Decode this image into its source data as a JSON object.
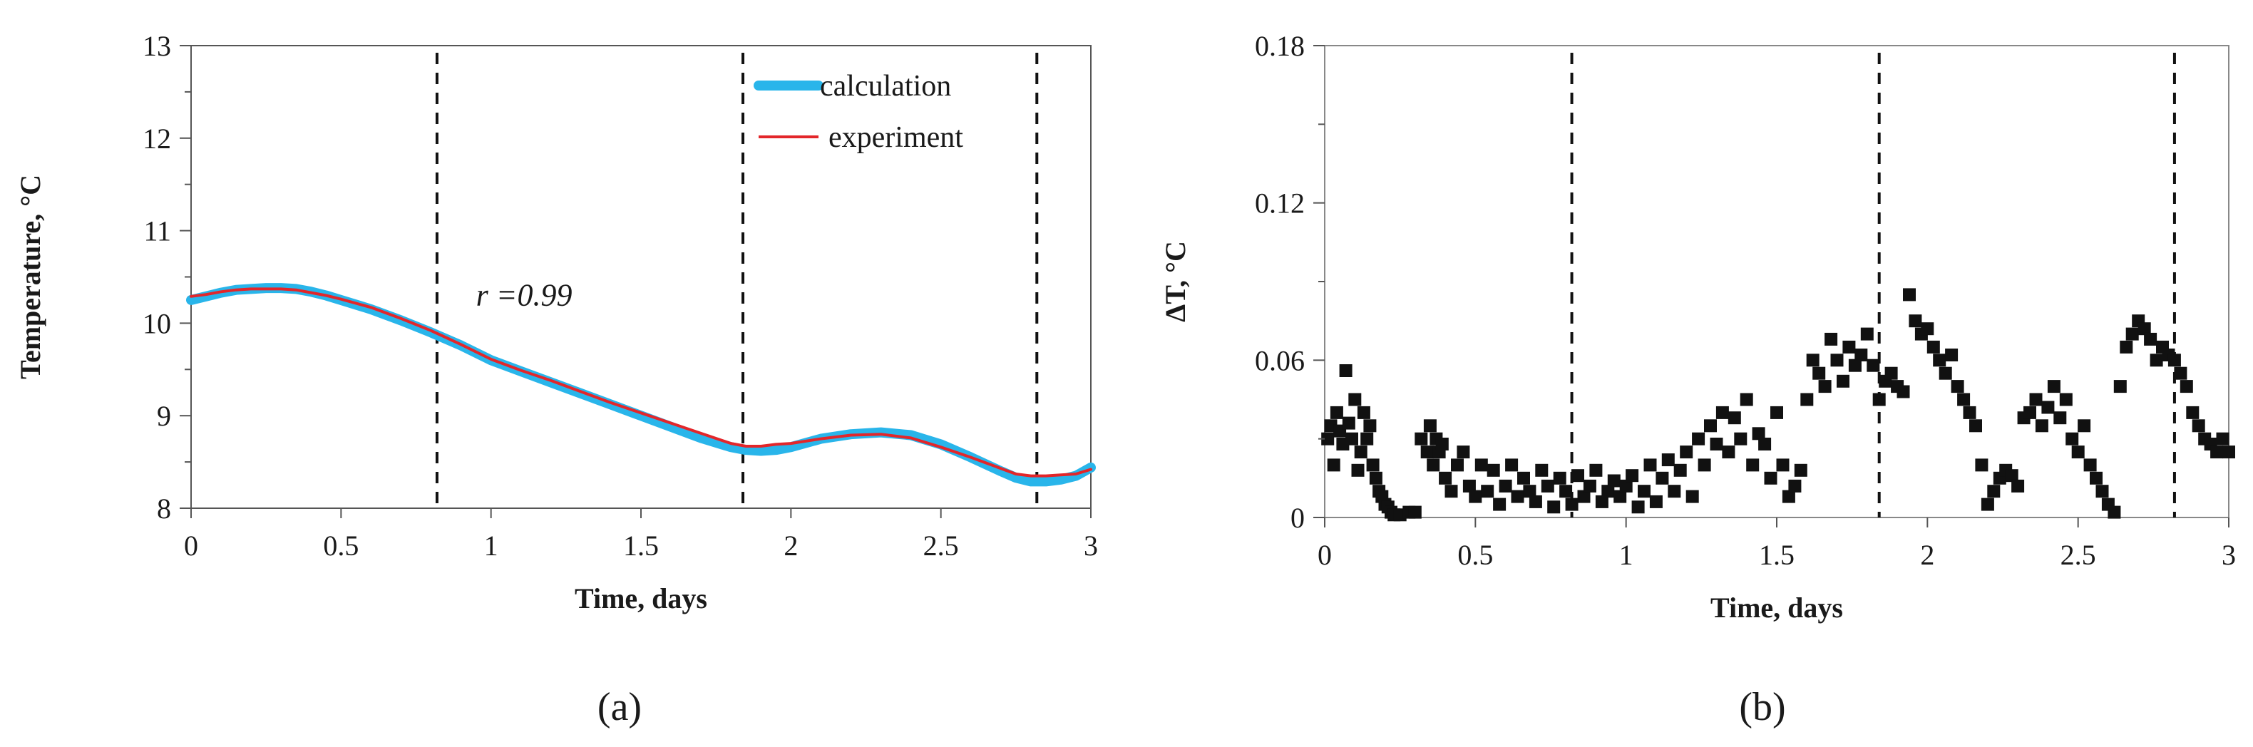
{
  "chart_data": [
    {
      "id": "a",
      "type": "line",
      "panel_label": "(a)",
      "xlabel": "Time, days",
      "ylabel": "Temperature, °C",
      "xlim": [
        0,
        3
      ],
      "ylim": [
        8,
        13
      ],
      "xticks": [
        0,
        0.5,
        1,
        1.5,
        2,
        2.5,
        3
      ],
      "xtick_labels": [
        "0",
        "0.5",
        "1",
        "1.5",
        "2",
        "2.5",
        "3"
      ],
      "yticks": [
        8,
        9,
        10,
        11,
        12,
        13
      ],
      "ytick_labels": [
        "8",
        "9",
        "10",
        "11",
        "12",
        "13"
      ],
      "vlines": [
        0.82,
        1.84,
        2.82
      ],
      "annotation": "r =0.99",
      "annotation_pos": {
        "x": 0.95,
        "y": 10.3
      },
      "legend_position": "top-right",
      "colors": {
        "calculation": "#29b5ea",
        "experiment": "#e3262a"
      },
      "series": [
        {
          "name": "calculation",
          "x": [
            0,
            0.05,
            0.1,
            0.15,
            0.2,
            0.25,
            0.3,
            0.35,
            0.4,
            0.45,
            0.5,
            0.6,
            0.7,
            0.8,
            0.9,
            1.0,
            1.1,
            1.2,
            1.3,
            1.4,
            1.5,
            1.6,
            1.7,
            1.8,
            1.85,
            1.9,
            1.95,
            2.0,
            2.1,
            2.2,
            2.3,
            2.4,
            2.5,
            2.6,
            2.7,
            2.75,
            2.8,
            2.85,
            2.9,
            2.95,
            3.0
          ],
          "values": [
            10.25,
            10.29,
            10.33,
            10.36,
            10.37,
            10.38,
            10.38,
            10.37,
            10.34,
            10.3,
            10.25,
            10.15,
            10.03,
            9.9,
            9.76,
            9.6,
            9.48,
            9.36,
            9.24,
            9.12,
            9.0,
            8.88,
            8.76,
            8.66,
            8.63,
            8.62,
            8.63,
            8.66,
            8.75,
            8.8,
            8.82,
            8.79,
            8.69,
            8.55,
            8.4,
            8.33,
            8.29,
            8.29,
            8.31,
            8.35,
            8.44
          ]
        },
        {
          "name": "experiment",
          "x": [
            0,
            0.05,
            0.1,
            0.15,
            0.2,
            0.25,
            0.3,
            0.35,
            0.4,
            0.45,
            0.5,
            0.6,
            0.7,
            0.8,
            0.9,
            1.0,
            1.1,
            1.2,
            1.3,
            1.4,
            1.5,
            1.6,
            1.7,
            1.8,
            1.85,
            1.9,
            1.95,
            2.0,
            2.1,
            2.2,
            2.3,
            2.4,
            2.5,
            2.6,
            2.7,
            2.75,
            2.8,
            2.85,
            2.9,
            2.95,
            3.0
          ],
          "values": [
            10.29,
            10.31,
            10.34,
            10.36,
            10.37,
            10.37,
            10.37,
            10.36,
            10.33,
            10.3,
            10.26,
            10.17,
            10.05,
            9.92,
            9.77,
            9.61,
            9.49,
            9.38,
            9.26,
            9.14,
            9.03,
            8.92,
            8.81,
            8.7,
            8.67,
            8.67,
            8.69,
            8.7,
            8.75,
            8.79,
            8.8,
            8.76,
            8.66,
            8.55,
            8.43,
            8.37,
            8.35,
            8.35,
            8.36,
            8.37,
            8.42
          ]
        }
      ]
    },
    {
      "id": "b",
      "type": "scatter",
      "panel_label": "(b)",
      "xlabel": "Time, days",
      "ylabel": "ΔT, °C",
      "xlim": [
        0,
        3
      ],
      "ylim": [
        0,
        0.18
      ],
      "xticks": [
        0,
        0.5,
        1,
        1.5,
        2,
        2.5,
        3
      ],
      "xtick_labels": [
        "0",
        "0.5",
        "1",
        "1.5",
        "2",
        "2.5",
        "3"
      ],
      "yticks": [
        0,
        0.06,
        0.12,
        0.18
      ],
      "ytick_labels": [
        "0",
        "0.06",
        "0.12",
        "0.18"
      ],
      "vlines": [
        0.82,
        1.84,
        2.82
      ],
      "colors": {
        "points": "#111111"
      },
      "series": [
        {
          "name": "ΔT",
          "x": [
            0.01,
            0.02,
            0.03,
            0.04,
            0.05,
            0.06,
            0.07,
            0.08,
            0.09,
            0.1,
            0.11,
            0.12,
            0.13,
            0.14,
            0.15,
            0.16,
            0.17,
            0.18,
            0.19,
            0.2,
            0.21,
            0.22,
            0.23,
            0.25,
            0.28,
            0.3,
            0.32,
            0.34,
            0.35,
            0.36,
            0.37,
            0.38,
            0.39,
            0.4,
            0.42,
            0.44,
            0.46,
            0.48,
            0.5,
            0.52,
            0.54,
            0.56,
            0.58,
            0.6,
            0.62,
            0.64,
            0.66,
            0.68,
            0.7,
            0.72,
            0.74,
            0.76,
            0.78,
            0.8,
            0.82,
            0.84,
            0.86,
            0.88,
            0.9,
            0.92,
            0.94,
            0.96,
            0.98,
            1.0,
            1.02,
            1.04,
            1.06,
            1.08,
            1.1,
            1.12,
            1.14,
            1.16,
            1.18,
            1.2,
            1.22,
            1.24,
            1.26,
            1.28,
            1.3,
            1.32,
            1.34,
            1.36,
            1.38,
            1.4,
            1.42,
            1.44,
            1.46,
            1.48,
            1.5,
            1.52,
            1.54,
            1.56,
            1.58,
            1.6,
            1.62,
            1.64,
            1.66,
            1.68,
            1.7,
            1.72,
            1.74,
            1.76,
            1.78,
            1.8,
            1.82,
            1.84,
            1.86,
            1.88,
            1.9,
            1.92,
            1.94,
            1.96,
            1.98,
            2.0,
            2.02,
            2.04,
            2.06,
            2.08,
            2.1,
            2.12,
            2.14,
            2.16,
            2.18,
            2.2,
            2.22,
            2.24,
            2.26,
            2.28,
            2.3,
            2.32,
            2.34,
            2.36,
            2.38,
            2.4,
            2.42,
            2.44,
            2.46,
            2.48,
            2.5,
            2.52,
            2.54,
            2.56,
            2.58,
            2.6,
            2.62,
            2.64,
            2.66,
            2.68,
            2.7,
            2.72,
            2.74,
            2.76,
            2.78,
            2.8,
            2.82,
            2.84,
            2.86,
            2.88,
            2.9,
            2.92,
            2.94,
            2.96,
            2.98,
            3.0
          ],
          "values": [
            0.03,
            0.035,
            0.02,
            0.04,
            0.033,
            0.028,
            0.056,
            0.036,
            0.03,
            0.045,
            0.018,
            0.025,
            0.04,
            0.03,
            0.035,
            0.02,
            0.015,
            0.01,
            0.008,
            0.005,
            0.004,
            0.002,
            0.001,
            0.001,
            0.002,
            0.002,
            0.03,
            0.025,
            0.035,
            0.02,
            0.03,
            0.025,
            0.028,
            0.015,
            0.01,
            0.02,
            0.025,
            0.012,
            0.008,
            0.02,
            0.01,
            0.018,
            0.005,
            0.012,
            0.02,
            0.008,
            0.015,
            0.01,
            0.006,
            0.018,
            0.012,
            0.004,
            0.015,
            0.01,
            0.005,
            0.016,
            0.008,
            0.012,
            0.018,
            0.006,
            0.01,
            0.014,
            0.008,
            0.012,
            0.016,
            0.004,
            0.01,
            0.02,
            0.006,
            0.015,
            0.022,
            0.01,
            0.018,
            0.025,
            0.008,
            0.03,
            0.02,
            0.035,
            0.028,
            0.04,
            0.025,
            0.038,
            0.03,
            0.045,
            0.02,
            0.032,
            0.028,
            0.015,
            0.04,
            0.02,
            0.008,
            0.012,
            0.018,
            0.045,
            0.06,
            0.055,
            0.05,
            0.068,
            0.06,
            0.052,
            0.065,
            0.058,
            0.062,
            0.07,
            0.058,
            0.045,
            0.052,
            0.055,
            0.05,
            0.048,
            0.085,
            0.075,
            0.07,
            0.072,
            0.065,
            0.06,
            0.055,
            0.062,
            0.05,
            0.045,
            0.04,
            0.035,
            0.02,
            0.005,
            0.01,
            0.015,
            0.018,
            0.016,
            0.012,
            0.038,
            0.04,
            0.045,
            0.035,
            0.042,
            0.05,
            0.038,
            0.045,
            0.03,
            0.025,
            0.035,
            0.02,
            0.015,
            0.01,
            0.005,
            0.002,
            0.05,
            0.065,
            0.07,
            0.075,
            0.072,
            0.068,
            0.06,
            0.065,
            0.062,
            0.06,
            0.055,
            0.05,
            0.04,
            0.035,
            0.03,
            0.028,
            0.025,
            0.03,
            0.025
          ]
        }
      ]
    }
  ]
}
